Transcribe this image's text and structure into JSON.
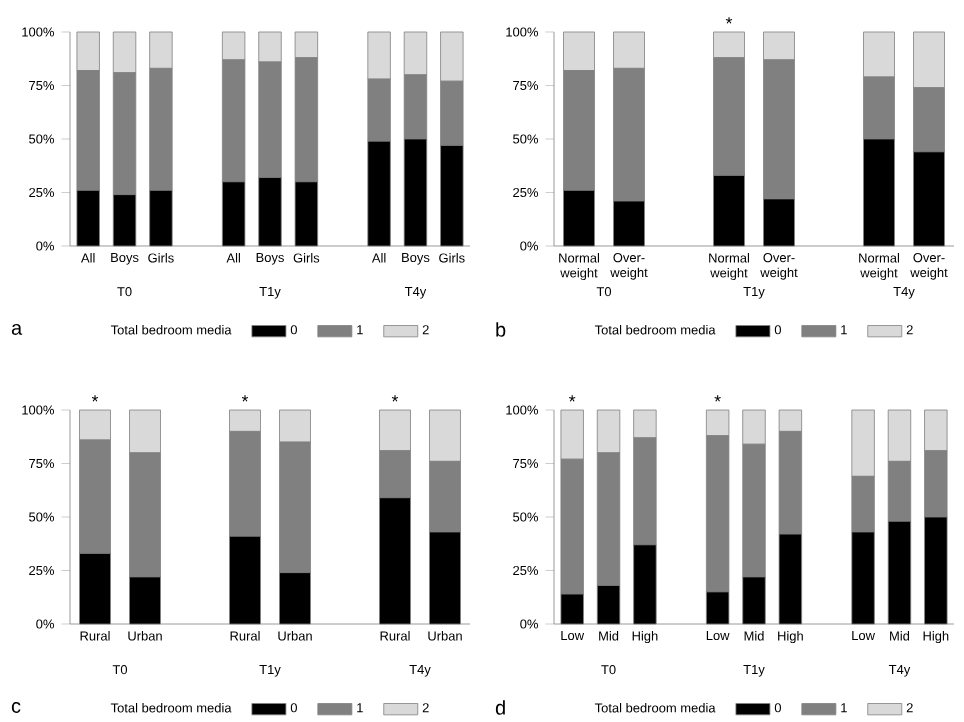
{
  "chart_data": [
    {
      "type": "bar",
      "stacked": true,
      "categories": [
        "All",
        "Boys",
        "Girls",
        null,
        "All",
        "Boys",
        "Girls",
        null,
        "All",
        "Boys",
        "Girls"
      ],
      "series": [
        {
          "name": "0",
          "color": "#000000",
          "values": [
            26,
            24,
            26,
            null,
            30,
            32,
            30,
            null,
            49,
            50,
            47
          ]
        },
        {
          "name": "1",
          "color": "#808080",
          "values": [
            56,
            57,
            57,
            null,
            57,
            54,
            58,
            null,
            29,
            30,
            30
          ]
        },
        {
          "name": "2",
          "color": "#d9d9d9",
          "values": [
            18,
            19,
            17,
            null,
            13,
            14,
            12,
            null,
            22,
            20,
            23
          ]
        }
      ],
      "ylim": [
        0,
        100
      ],
      "yticks": [
        {
          "value": 0,
          "label": "0%"
        },
        {
          "value": 25,
          "label": "25%"
        },
        {
          "value": 50,
          "label": "50%"
        },
        {
          "value": 75,
          "label": "75%"
        },
        {
          "value": 100,
          "label": "100%"
        }
      ],
      "legend": "bottom",
      "legend_title": "Total bedroom media",
      "annotations": [
        "T0",
        "T1y",
        "T4y",
        "a"
      ]
    },
    {
      "type": "bar",
      "stacked": true,
      "categories": [
        "Normal weight",
        "Over-weight",
        null,
        "Normal weight",
        "Over-weight",
        null,
        "Normal weight",
        "Over-weight"
      ],
      "series": [
        {
          "name": "0",
          "color": "#000000",
          "values": [
            26,
            21,
            null,
            33,
            22,
            null,
            50,
            44
          ]
        },
        {
          "name": "1",
          "color": "#808080",
          "values": [
            56,
            62,
            null,
            55,
            65,
            null,
            29,
            30
          ]
        },
        {
          "name": "2",
          "color": "#d9d9d9",
          "values": [
            18,
            17,
            null,
            12,
            13,
            null,
            21,
            26
          ],
          "value_labels": [
            null,
            null,
            null,
            "*",
            null,
            null,
            null,
            null
          ]
        }
      ],
      "ylim": [
        0,
        100
      ],
      "yticks": [
        {
          "value": 0,
          "label": "0%"
        },
        {
          "value": 25,
          "label": "25%"
        },
        {
          "value": 50,
          "label": "50%"
        },
        {
          "value": 75,
          "label": "75%"
        },
        {
          "value": 100,
          "label": "100%"
        }
      ],
      "legend": "bottom",
      "legend_title": "Total bedroom media",
      "annotations": [
        "T0",
        "T1y",
        "T4y",
        "b"
      ]
    },
    {
      "type": "bar",
      "stacked": true,
      "categories": [
        "Rural",
        "Urban",
        null,
        "Rural",
        "Urban",
        null,
        "Rural",
        "Urban"
      ],
      "series": [
        {
          "name": "0",
          "color": "#000000",
          "values": [
            33,
            22,
            null,
            41,
            24,
            null,
            59,
            43
          ]
        },
        {
          "name": "1",
          "color": "#808080",
          "values": [
            53,
            58,
            null,
            49,
            61,
            null,
            22,
            33
          ]
        },
        {
          "name": "2",
          "color": "#d9d9d9",
          "values": [
            14,
            20,
            null,
            10,
            15,
            null,
            19,
            24
          ],
          "value_labels": [
            "*",
            null,
            null,
            "*",
            null,
            null,
            "*",
            null
          ]
        }
      ],
      "ylim": [
        0,
        100
      ],
      "yticks": [
        {
          "value": 0,
          "label": "0%"
        },
        {
          "value": 25,
          "label": "25%"
        },
        {
          "value": 50,
          "label": "50%"
        },
        {
          "value": 75,
          "label": "75%"
        },
        {
          "value": 100,
          "label": "100%"
        }
      ],
      "legend": "bottom",
      "legend_title": "Total bedroom media",
      "annotations": [
        "T0",
        "T1y",
        "T4y",
        "c"
      ]
    },
    {
      "type": "bar",
      "stacked": true,
      "categories": [
        "Low",
        "Mid",
        "High",
        null,
        "Low",
        "Mid",
        "High",
        null,
        "Low",
        "Mid",
        "High"
      ],
      "series": [
        {
          "name": "0",
          "color": "#000000",
          "values": [
            14,
            18,
            37,
            null,
            15,
            22,
            42,
            null,
            43,
            48,
            50
          ]
        },
        {
          "name": "1",
          "color": "#808080",
          "values": [
            63,
            62,
            50,
            null,
            73,
            62,
            48,
            null,
            26,
            28,
            31
          ]
        },
        {
          "name": "2",
          "color": "#d9d9d9",
          "values": [
            23,
            20,
            13,
            null,
            12,
            16,
            10,
            null,
            31,
            24,
            19
          ],
          "value_labels": [
            "*",
            null,
            null,
            null,
            "*",
            null,
            null,
            null,
            null,
            null,
            null
          ]
        }
      ],
      "ylim": [
        0,
        100
      ],
      "yticks": [
        {
          "value": 0,
          "label": "0%"
        },
        {
          "value": 25,
          "label": "25%"
        },
        {
          "value": 50,
          "label": "50%"
        },
        {
          "value": 75,
          "label": "75%"
        },
        {
          "value": 100,
          "label": "100%"
        }
      ],
      "legend": "bottom",
      "legend_title": "Total bedroom media",
      "annotations": [
        "T0",
        "T1y",
        "T4y",
        "d"
      ]
    }
  ]
}
